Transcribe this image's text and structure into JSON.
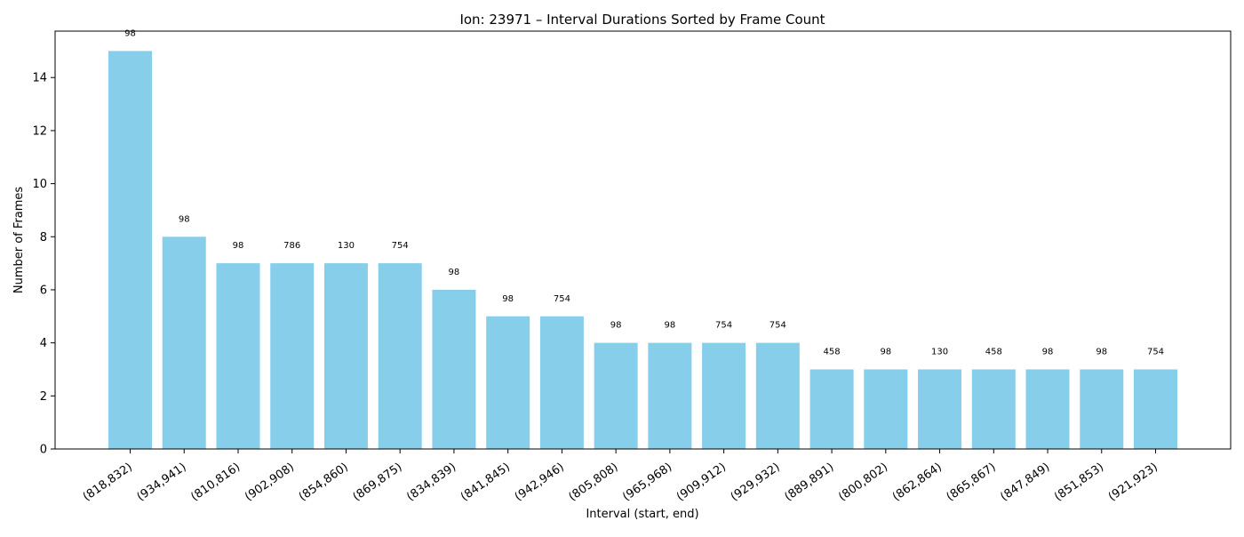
{
  "chart_data": {
    "type": "bar",
    "title": "Ion: 23971 – Interval Durations Sorted by Frame Count",
    "xlabel": "Interval (start, end)",
    "ylabel": "Number of Frames",
    "categories": [
      "(818,832)",
      "(934,941)",
      "(810,816)",
      "(902,908)",
      "(854,860)",
      "(869,875)",
      "(834,839)",
      "(841,845)",
      "(942,946)",
      "(805,808)",
      "(965,968)",
      "(909,912)",
      "(929,932)",
      "(889,891)",
      "(800,802)",
      "(862,864)",
      "(865,867)",
      "(847,849)",
      "(851,853)",
      "(921,923)"
    ],
    "values": [
      15,
      8,
      7,
      7,
      7,
      7,
      6,
      5,
      5,
      4,
      4,
      4,
      4,
      3,
      3,
      3,
      3,
      3,
      3,
      3
    ],
    "bar_labels": [
      "98",
      "98",
      "98",
      "786",
      "130",
      "754",
      "98",
      "98",
      "754",
      "98",
      "98",
      "754",
      "754",
      "458",
      "98",
      "130",
      "458",
      "98",
      "98",
      "754"
    ],
    "yticks": [
      "0",
      "2",
      "4",
      "6",
      "8",
      "10",
      "12",
      "14"
    ],
    "ylim": [
      0,
      15.75
    ],
    "grid": false,
    "bar_color": "#87ceeb"
  }
}
